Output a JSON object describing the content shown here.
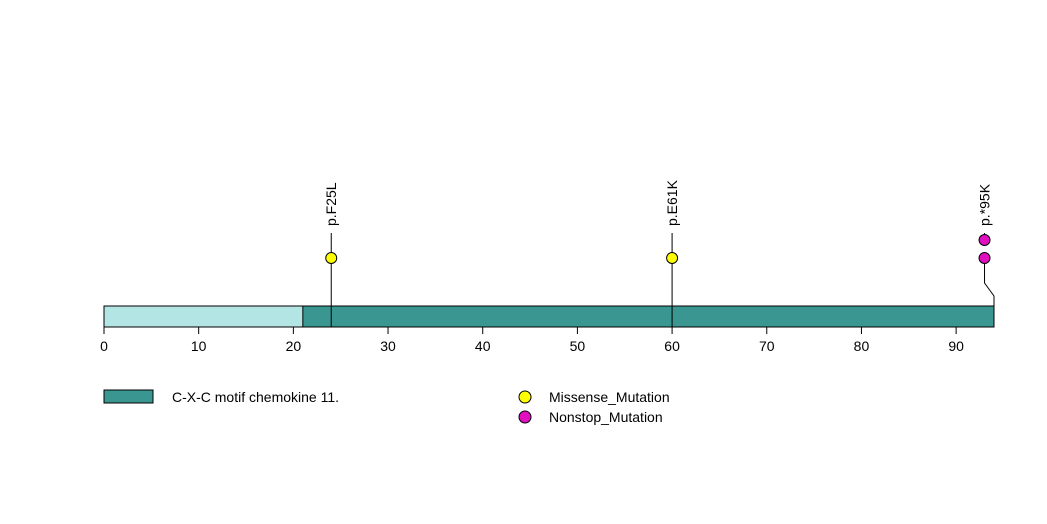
{
  "chart_data": {
    "type": "lollipop",
    "x_range": [
      0,
      94
    ],
    "x_ticks": [
      0,
      10,
      20,
      30,
      40,
      50,
      60,
      70,
      80,
      90
    ],
    "protein_length": 94,
    "domains": [
      {
        "name": "C-X-C motif chemokine 11.",
        "start": 21,
        "end": 94,
        "color": "#3a9690"
      }
    ],
    "mutations": [
      {
        "label": "p.F25L",
        "position": 24,
        "count": 1,
        "type": "Missense_Mutation"
      },
      {
        "label": "p.E61K",
        "position": 60,
        "count": 1,
        "type": "Missense_Mutation"
      },
      {
        "label": "p.*95K",
        "position": 93,
        "count": 2,
        "type": "Nonstop_Mutation"
      }
    ],
    "legend": {
      "domains": [
        "C-X-C motif chemokine 11."
      ],
      "mutation_types": [
        "Missense_Mutation",
        "Nonstop_Mutation"
      ]
    }
  },
  "colors": {
    "backbone": "#b3e5e5",
    "domain": "#3a9690",
    "Missense_Mutation": "#ffff00",
    "Nonstop_Mutation": "#e010c0"
  }
}
